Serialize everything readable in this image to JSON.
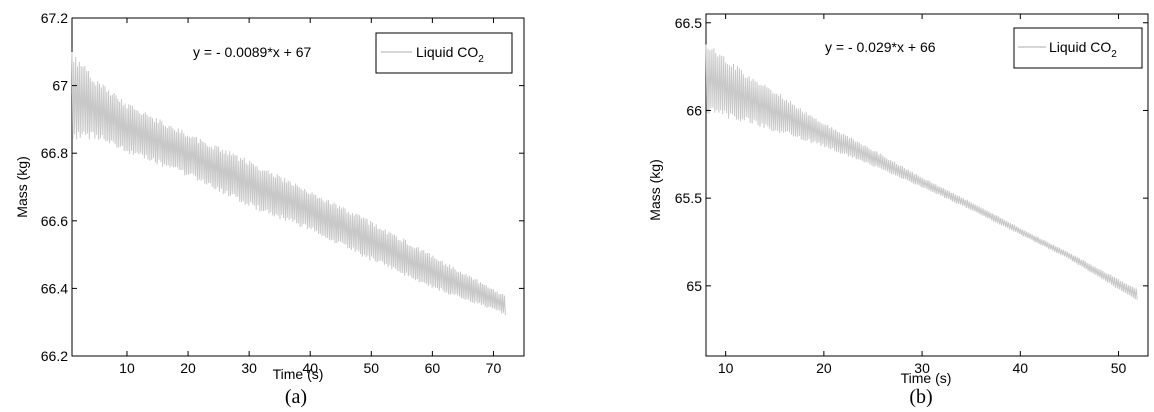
{
  "chart_data": [
    {
      "type": "line",
      "caption": "(a)",
      "xlabel": "Time (s)",
      "ylabel": "Mass (kg)",
      "xlim": [
        1,
        75
      ],
      "ylim": [
        66.2,
        67.2
      ],
      "xticks": [
        10,
        20,
        30,
        40,
        50,
        60,
        70
      ],
      "yticks": [
        66.2,
        66.4,
        66.6,
        66.8,
        67,
        67.2
      ],
      "yticklabels": [
        "66.2",
        "66.4",
        "66.6",
        "66.8",
        "67",
        "67.2"
      ],
      "fit_equation": "y = - 0.0089*x + 67",
      "legend": {
        "entries": [
          "Liquid CO"
        ],
        "subscript": "2",
        "position": "top-right"
      },
      "series": [
        {
          "name": "Liquid CO2",
          "color": "#c8c8c8",
          "x_range": [
            1,
            72
          ],
          "upper": [
            [
              1,
              67.1
            ],
            [
              5,
              67.02
            ],
            [
              10,
              66.95
            ],
            [
              20,
              66.86
            ],
            [
              30,
              66.78
            ],
            [
              40,
              66.69
            ],
            [
              50,
              66.6
            ],
            [
              60,
              66.5
            ],
            [
              72,
              66.38
            ]
          ],
          "lower": [
            [
              1,
              66.84
            ],
            [
              5,
              66.84
            ],
            [
              10,
              66.8
            ],
            [
              20,
              66.73
            ],
            [
              30,
              66.64
            ],
            [
              40,
              66.57
            ],
            [
              50,
              66.48
            ],
            [
              60,
              66.4
            ],
            [
              72,
              66.32
            ]
          ]
        }
      ]
    },
    {
      "type": "line",
      "caption": "(b)",
      "xlabel": "Time (s)",
      "ylabel": "Mass (kg)",
      "xlim": [
        8,
        53
      ],
      "ylim": [
        64.6,
        66.55
      ],
      "xticks": [
        10,
        20,
        30,
        40,
        50
      ],
      "yticks": [
        65,
        65.5,
        66,
        66.5
      ],
      "yticklabels": [
        "65",
        "65.5",
        "66",
        "66.5"
      ],
      "fit_equation": "y = - 0.029*x + 66",
      "legend": {
        "entries": [
          "Liquid CO"
        ],
        "subscript": "2",
        "position": "top-right"
      },
      "series": [
        {
          "name": "Liquid CO2",
          "color": "#c8c8c8",
          "x_range": [
            8,
            52
          ],
          "upper": [
            [
              8,
              66.4
            ],
            [
              12,
              66.22
            ],
            [
              16,
              66.08
            ],
            [
              20,
              65.93
            ],
            [
              25,
              65.78
            ],
            [
              30,
              65.62
            ],
            [
              35,
              65.48
            ],
            [
              40,
              65.33
            ],
            [
              45,
              65.19
            ],
            [
              52,
              64.98
            ]
          ],
          "lower": [
            [
              8,
              65.98
            ],
            [
              12,
              65.93
            ],
            [
              16,
              65.86
            ],
            [
              20,
              65.79
            ],
            [
              25,
              65.68
            ],
            [
              30,
              65.56
            ],
            [
              35,
              65.43
            ],
            [
              40,
              65.29
            ],
            [
              45,
              65.15
            ],
            [
              52,
              64.91
            ]
          ]
        }
      ]
    }
  ]
}
